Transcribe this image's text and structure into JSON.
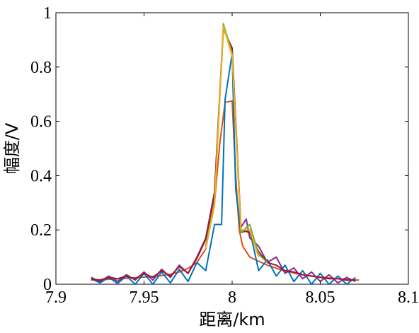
{
  "chart_data": {
    "type": "line",
    "xlabel": "距离/km",
    "ylabel": "幅度/V",
    "xlim": [
      7.9,
      8.1
    ],
    "ylim": [
      0,
      1
    ],
    "xticks": [
      7.9,
      7.95,
      8.0,
      8.05,
      8.1
    ],
    "xtick_labels": [
      "7.9",
      "7.95",
      "8",
      "8.05",
      "8.1"
    ],
    "yticks": [
      0,
      0.2,
      0.4,
      0.6,
      0.8,
      1
    ],
    "ytick_labels": [
      "0",
      "0.2",
      "0.4",
      "0.6",
      "0.8",
      "1"
    ],
    "grid": false,
    "series": [
      {
        "color": "#d95319",
        "x": [
          7.92,
          7.93,
          7.94,
          7.95,
          7.96,
          7.965,
          7.97,
          7.975,
          7.98,
          7.985,
          7.99,
          7.993,
          7.996,
          8.0,
          8.002,
          8.004,
          8.006,
          8.01,
          8.015,
          8.02,
          8.03,
          8.04,
          8.05,
          8.06,
          8.072
        ],
        "y": [
          0.015,
          0.018,
          0.022,
          0.026,
          0.032,
          0.037,
          0.045,
          0.058,
          0.08,
          0.13,
          0.3,
          0.52,
          0.67,
          0.675,
          0.4,
          0.2,
          0.14,
          0.1,
          0.085,
          0.07,
          0.048,
          0.035,
          0.026,
          0.02,
          0.015
        ]
      },
      {
        "color": "#0072bd",
        "x": [
          7.92,
          7.925,
          7.93,
          7.935,
          7.94,
          7.945,
          7.95,
          7.955,
          7.96,
          7.965,
          7.97,
          7.975,
          7.98,
          7.985,
          7.99,
          7.994,
          7.996,
          8.0,
          8.002,
          8.005,
          8.01,
          8.015,
          8.02,
          8.025,
          8.03,
          8.035,
          8.04,
          8.045,
          8.05,
          8.055,
          8.06,
          8.065,
          8.07
        ],
        "y": [
          0.02,
          0.005,
          0.025,
          0.003,
          0.03,
          0.0,
          0.04,
          0.0,
          0.045,
          0.005,
          0.055,
          0.01,
          0.08,
          0.05,
          0.22,
          0.22,
          0.68,
          0.85,
          0.35,
          0.19,
          0.2,
          0.05,
          0.09,
          0.03,
          0.07,
          0.01,
          0.05,
          0.0,
          0.04,
          0.0,
          0.03,
          0.0,
          0.025
        ]
      },
      {
        "color": "#7e2f8e",
        "x": [
          7.92,
          7.925,
          7.93,
          7.935,
          7.94,
          7.945,
          7.95,
          7.955,
          7.96,
          7.965,
          7.97,
          7.975,
          7.98,
          7.985,
          7.99,
          7.995,
          8.0,
          8.005,
          8.008,
          8.01,
          8.015,
          8.02,
          8.025,
          8.03,
          8.035,
          8.04,
          8.045,
          8.05,
          8.055,
          8.06,
          8.065,
          8.07
        ],
        "y": [
          0.025,
          0.01,
          0.03,
          0.01,
          0.035,
          0.015,
          0.045,
          0.015,
          0.055,
          0.025,
          0.07,
          0.04,
          0.1,
          0.17,
          0.34,
          0.95,
          0.86,
          0.21,
          0.24,
          0.17,
          0.14,
          0.08,
          0.1,
          0.04,
          0.06,
          0.02,
          0.045,
          0.01,
          0.035,
          0.005,
          0.025,
          0.01
        ]
      },
      {
        "color": "#a2142f",
        "x": [
          7.92,
          7.925,
          7.93,
          7.935,
          7.94,
          7.945,
          7.95,
          7.955,
          7.96,
          7.965,
          7.97,
          7.975,
          7.98,
          7.985,
          7.99,
          7.995,
          8.0,
          8.005,
          8.01,
          8.015,
          8.02,
          8.025,
          8.03,
          8.035,
          8.04,
          8.045,
          8.05,
          8.055,
          8.06,
          8.065,
          8.07
        ],
        "y": [
          0.02,
          0.015,
          0.025,
          0.02,
          0.03,
          0.02,
          0.04,
          0.025,
          0.05,
          0.03,
          0.065,
          0.04,
          0.095,
          0.165,
          0.33,
          0.94,
          0.87,
          0.2,
          0.19,
          0.12,
          0.08,
          0.07,
          0.05,
          0.045,
          0.035,
          0.03,
          0.025,
          0.02,
          0.02,
          0.015,
          0.015
        ]
      },
      {
        "color": "#77ac30",
        "x": [
          7.985,
          7.99,
          7.995,
          8.0,
          8.005,
          8.01,
          8.015,
          8.02
        ],
        "y": [
          0.14,
          0.3,
          0.96,
          0.85,
          0.19,
          0.22,
          0.11,
          0.08
        ]
      },
      {
        "color": "#edb120",
        "x": [
          7.985,
          7.99,
          7.995,
          8.0,
          8.005,
          8.01,
          8.015
        ],
        "y": [
          0.13,
          0.29,
          0.95,
          0.84,
          0.2,
          0.2,
          0.1
        ]
      }
    ]
  }
}
